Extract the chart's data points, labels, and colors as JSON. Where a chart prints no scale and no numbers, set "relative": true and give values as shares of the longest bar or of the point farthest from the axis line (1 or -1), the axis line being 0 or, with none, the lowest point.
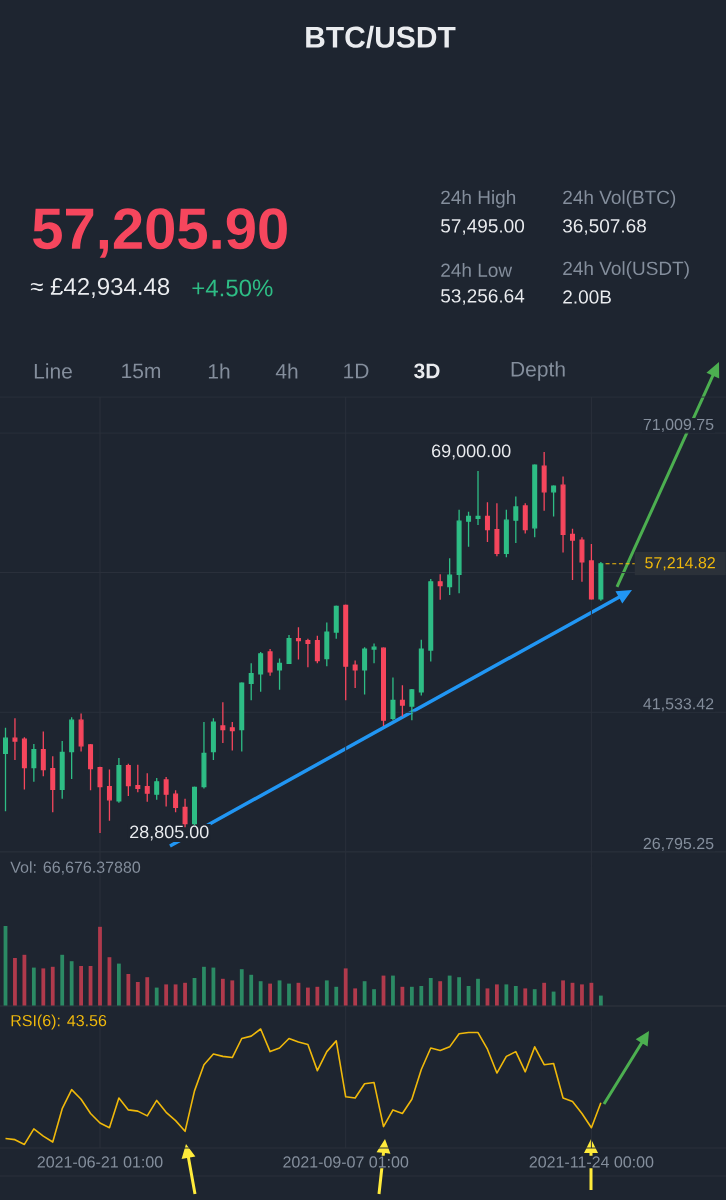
{
  "chart_data": [
    {
      "type": "other",
      "title": "BTC/USDT",
      "subtitle": "57,205.90",
      "annotations": [
        "≈ £42,934.48",
        "+4.50%",
        "24h High",
        "57,495.00",
        "24h Vol(BTC)",
        "36,507.68",
        "24h Low",
        "53,256.64",
        "24h Vol(USDT)",
        "2.00B",
        "Line",
        "15m",
        "1h",
        "4h",
        "1D",
        "3D",
        "Depth"
      ]
    },
    {
      "type": "candlestick",
      "categories": [
        null,
        null,
        null,
        null,
        null,
        null,
        null,
        null,
        null,
        null,
        "2021-06-21 01:00",
        null,
        null,
        null,
        null,
        null,
        null,
        null,
        null,
        null,
        null,
        null,
        null,
        null,
        null,
        null,
        null,
        null,
        null,
        null,
        null,
        null,
        null,
        null,
        null,
        null,
        "2021-09-07 01:00",
        null,
        null,
        null,
        null,
        null,
        null,
        null,
        null,
        null,
        null,
        null,
        null,
        null,
        null,
        null,
        null,
        null,
        null,
        null,
        null,
        null,
        null,
        null,
        null,
        null,
        "2021-11-24 00:00",
        null
      ],
      "ohlc": [
        [
          37200,
          39900,
          31100,
          38800
        ],
        [
          38800,
          40900,
          36500,
          38500
        ],
        [
          38700,
          38900,
          33400,
          35700
        ],
        [
          35700,
          38200,
          34200,
          37600
        ],
        [
          37600,
          39500,
          34800,
          35500
        ],
        [
          35600,
          36900,
          31000,
          33400
        ],
        [
          33400,
          38500,
          32400,
          37300
        ],
        [
          37400,
          41000,
          34500,
          40700
        ],
        [
          40700,
          41400,
          37400,
          38000
        ],
        [
          38100,
          38200,
          33300,
          35600
        ],
        [
          35700,
          35800,
          28805,
          33700
        ],
        [
          33700,
          35500,
          30100,
          32300
        ],
        [
          32200,
          36700,
          32000,
          35900
        ],
        [
          35900,
          36100,
          32700,
          33800
        ],
        [
          33800,
          36000,
          33100,
          33500
        ],
        [
          33700,
          35100,
          32100,
          33000
        ],
        [
          32900,
          34600,
          32300,
          34200
        ],
        [
          34400,
          34700,
          31600,
          32900
        ],
        [
          32900,
          33300,
          31000,
          31500
        ],
        [
          31500,
          32400,
          29400,
          29800
        ],
        [
          29800,
          33700,
          29600,
          33600
        ],
        [
          33700,
          40500,
          33500,
          37200
        ],
        [
          37400,
          40900,
          36500,
          40500
        ],
        [
          40100,
          42600,
          38300,
          39700
        ],
        [
          39900,
          40500,
          37500,
          39600
        ],
        [
          39700,
          44700,
          37400,
          44600
        ],
        [
          44600,
          46700,
          42800,
          45600
        ],
        [
          45600,
          47900,
          43700,
          47700
        ],
        [
          47900,
          48200,
          45400,
          45800
        ],
        [
          46000,
          47200,
          43900,
          46700
        ],
        [
          46700,
          49700,
          46700,
          49300
        ],
        [
          49300,
          50500,
          47100,
          49100
        ],
        [
          49100,
          49300,
          46300,
          48800
        ],
        [
          49100,
          49600,
          46700,
          47000
        ],
        [
          47200,
          51000,
          46400,
          50000
        ],
        [
          50000,
          52800,
          49300,
          52700
        ],
        [
          52800,
          52900,
          42800,
          46400
        ],
        [
          46500,
          47000,
          44100,
          46000
        ],
        [
          46000,
          48400,
          43400,
          48200
        ],
        [
          48200,
          48800,
          46700,
          48400
        ],
        [
          48300,
          48400,
          40100,
          40700
        ],
        [
          40900,
          45200,
          40700,
          42800
        ],
        [
          42800,
          44400,
          41100,
          42300
        ],
        [
          42200,
          44000,
          40700,
          43900
        ],
        [
          43700,
          49200,
          43300,
          48200
        ],
        [
          48100,
          55600,
          46900,
          55300
        ],
        [
          55300,
          56100,
          53400,
          54900
        ],
        [
          54800,
          57800,
          53900,
          56000
        ],
        [
          56100,
          62900,
          54100,
          61700
        ],
        [
          61700,
          62700,
          59000,
          62200
        ],
        [
          62000,
          67000,
          61300,
          62200
        ],
        [
          62200,
          63700,
          59500,
          60800
        ],
        [
          60800,
          63600,
          58000,
          58300
        ],
        [
          58300,
          62900,
          57900,
          61800
        ],
        [
          61800,
          64300,
          59400,
          63200
        ],
        [
          63300,
          63600,
          60400,
          60800
        ],
        [
          61000,
          67700,
          60000,
          67600
        ],
        [
          67500,
          69000,
          62800,
          64800
        ],
        [
          64800,
          65500,
          62200,
          65400
        ],
        [
          65500,
          66400,
          58400,
          60300
        ],
        [
          60300,
          60900,
          55500,
          59700
        ],
        [
          59700,
          60000,
          55300,
          57400
        ],
        [
          57500,
          59300,
          53400,
          53500
        ],
        [
          53500,
          57400,
          53300,
          57200
        ]
      ],
      "colors": [
        "#2ebd85",
        "#f6465d",
        "#f6465d",
        "#2ebd85",
        "#f6465d",
        "#f6465d",
        "#2ebd85",
        "#2ebd85",
        "#f6465d",
        "#f6465d",
        "#f6465d",
        "#f6465d",
        "#2ebd85",
        "#f6465d",
        "#f6465d",
        "#f6465d",
        "#2ebd85",
        "#f6465d",
        "#f6465d",
        "#f6465d",
        "#2ebd85",
        "#2ebd85",
        "#2ebd85",
        "#f6465d",
        "#f6465d",
        "#2ebd85",
        "#2ebd85",
        "#2ebd85",
        "#f6465d",
        "#2ebd85",
        "#2ebd85",
        "#f6465d",
        "#f6465d",
        "#f6465d",
        "#2ebd85",
        "#2ebd85",
        "#f6465d",
        "#f6465d",
        "#2ebd85",
        "#2ebd85",
        "#f6465d",
        "#2ebd85",
        "#f6465d",
        "#2ebd85",
        "#2ebd85",
        "#2ebd85",
        "#f6465d",
        "#2ebd85",
        "#2ebd85",
        "#2ebd85",
        "#2ebd85",
        "#f6465d",
        "#f6465d",
        "#2ebd85",
        "#2ebd85",
        "#f6465d",
        "#2ebd85",
        "#f6465d",
        "#2ebd85",
        "#f6465d",
        "#f6465d",
        "#f6465d",
        "#f6465d",
        "#2ebd85"
      ],
      "ylim": [
        26795.25,
        74800
      ],
      "yticks": [
        {
          "value": 26795.25,
          "label": "26,795.25"
        },
        {
          "value": 41533.42,
          "label": "41,533.42"
        },
        {
          "value": 56271.59,
          "label": null
        },
        {
          "value": 71009.75,
          "label": "71,009.75"
        }
      ],
      "grid": true,
      "tick_labels": "y",
      "annotations": [
        "69,000.00",
        "28,805.00"
      ],
      "ref_lines": [
        {
          "axis": "y",
          "value": 57214.82,
          "label": "57,214.82",
          "color": "#f0b90b",
          "line_style": "dashed"
        }
      ]
    },
    {
      "type": "bar",
      "title": "Vol: 66,676.37880",
      "relative": true,
      "categories": [
        null,
        null,
        null,
        null,
        null,
        null,
        null,
        null,
        null,
        null,
        "2021-06-21 01:00",
        null,
        null,
        null,
        null,
        null,
        null,
        null,
        null,
        null,
        null,
        null,
        null,
        null,
        null,
        null,
        null,
        null,
        null,
        null,
        null,
        null,
        null,
        null,
        null,
        null,
        "2021-09-07 01:00",
        null,
        null,
        null,
        null,
        null,
        null,
        null,
        null,
        null,
        null,
        null,
        null,
        null,
        null,
        null,
        null,
        null,
        null,
        null,
        null,
        null,
        null,
        null,
        null,
        null,
        "2021-11-24 00:00",
        null
      ],
      "values": [
        1.0,
        0.6,
        0.64,
        0.48,
        0.47,
        0.49,
        0.64,
        0.56,
        0.5,
        0.5,
        0.99,
        0.61,
        0.53,
        0.4,
        0.3,
        0.36,
        0.23,
        0.27,
        0.27,
        0.29,
        0.35,
        0.49,
        0.48,
        0.34,
        0.32,
        0.46,
        0.39,
        0.31,
        0.28,
        0.32,
        0.28,
        0.29,
        0.23,
        0.24,
        0.32,
        0.24,
        0.47,
        0.22,
        0.31,
        0.21,
        0.38,
        0.38,
        0.24,
        0.24,
        0.25,
        0.35,
        0.31,
        0.38,
        0.36,
        0.25,
        0.34,
        0.22,
        0.27,
        0.27,
        0.25,
        0.22,
        0.21,
        0.29,
        0.18,
        0.32,
        0.29,
        0.27,
        0.29,
        0.13
      ],
      "colors": [
        "#2b8a64",
        "#b03a4c",
        "#b03a4c",
        "#2b8a64",
        "#b03a4c",
        "#b03a4c",
        "#2b8a64",
        "#2b8a64",
        "#b03a4c",
        "#b03a4c",
        "#b03a4c",
        "#b03a4c",
        "#2b8a64",
        "#b03a4c",
        "#b03a4c",
        "#b03a4c",
        "#2b8a64",
        "#b03a4c",
        "#b03a4c",
        "#b03a4c",
        "#2b8a64",
        "#2b8a64",
        "#2b8a64",
        "#b03a4c",
        "#b03a4c",
        "#2b8a64",
        "#2b8a64",
        "#2b8a64",
        "#b03a4c",
        "#2b8a64",
        "#2b8a64",
        "#b03a4c",
        "#b03a4c",
        "#b03a4c",
        "#2b8a64",
        "#2b8a64",
        "#b03a4c",
        "#b03a4c",
        "#2b8a64",
        "#2b8a64",
        "#b03a4c",
        "#2b8a64",
        "#b03a4c",
        "#2b8a64",
        "#2b8a64",
        "#2b8a64",
        "#b03a4c",
        "#2b8a64",
        "#2b8a64",
        "#2b8a64",
        "#2b8a64",
        "#b03a4c",
        "#b03a4c",
        "#2b8a64",
        "#2b8a64",
        "#b03a4c",
        "#2b8a64",
        "#b03a4c",
        "#2b8a64",
        "#b03a4c",
        "#b03a4c",
        "#b03a4c",
        "#b03a4c",
        "#2b8a64"
      ],
      "grid": "x",
      "tick_labels": false
    },
    {
      "type": "line",
      "title": "RSI(6): 43.56",
      "relative": true,
      "color": "#f0b90b",
      "categories": [
        null,
        null,
        null,
        null,
        null,
        null,
        null,
        null,
        null,
        null,
        "2021-06-21 01:00",
        null,
        null,
        null,
        null,
        null,
        null,
        null,
        null,
        null,
        null,
        null,
        null,
        null,
        null,
        null,
        null,
        null,
        null,
        null,
        null,
        null,
        null,
        null,
        null,
        null,
        "2021-09-07 01:00",
        null,
        null,
        null,
        null,
        null,
        null,
        null,
        null,
        null,
        null,
        null,
        null,
        null,
        null,
        null,
        null,
        null,
        null,
        null,
        null,
        null,
        null,
        null,
        null,
        null,
        "2021-11-24 00:00",
        null
      ],
      "values": [
        0.08,
        0.07,
        0.03,
        0.16,
        0.1,
        0.05,
        0.33,
        0.49,
        0.41,
        0.29,
        0.21,
        0.17,
        0.42,
        0.32,
        0.31,
        0.27,
        0.4,
        0.3,
        0.23,
        0.14,
        0.48,
        0.7,
        0.79,
        0.77,
        0.76,
        0.92,
        0.94,
        1.0,
        0.81,
        0.84,
        0.92,
        0.89,
        0.87,
        0.65,
        0.81,
        0.9,
        0.43,
        0.42,
        0.54,
        0.55,
        0.18,
        0.32,
        0.29,
        0.41,
        0.66,
        0.84,
        0.82,
        0.85,
        0.96,
        0.97,
        0.97,
        0.83,
        0.63,
        0.77,
        0.81,
        0.64,
        0.85,
        0.7,
        0.71,
        0.42,
        0.39,
        0.29,
        0.17,
        0.38
      ],
      "grid": "x",
      "tick_labels": "x"
    }
  ]
}
